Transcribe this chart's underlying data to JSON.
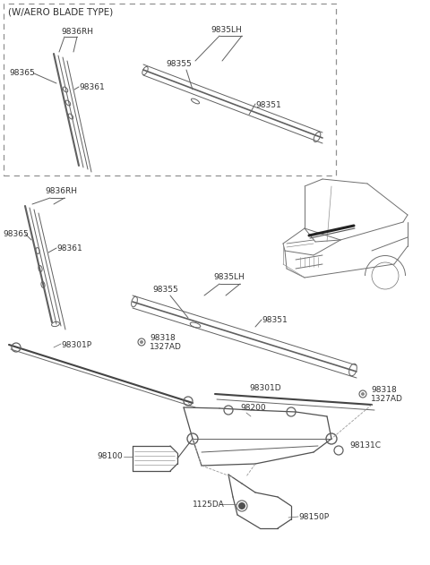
{
  "bg_color": "#ffffff",
  "line_color": "#606060",
  "text_color": "#303030",
  "aero_label": "(W/AERO BLADE TYPE)",
  "labels": {
    "9836RH_top": "9836RH",
    "98365_top": "98365",
    "98361_top": "98361",
    "9835LH_top": "9835LH",
    "98355_top": "98355",
    "98351_top": "98351",
    "9836RH_mid": "9836RH",
    "98365_mid": "98365",
    "98361_mid": "98361",
    "9835LH_mid": "9835LH",
    "98355_mid": "98355",
    "98351_mid": "98351",
    "98301P": "98301P",
    "98318a": "98318",
    "1327ADa": "1327AD",
    "98301D": "98301D",
    "98318b": "98318",
    "1327ADb": "1327AD",
    "98200": "98200",
    "98100": "98100",
    "98131C": "98131C",
    "1125DA": "1125DA",
    "98150P": "98150P"
  }
}
